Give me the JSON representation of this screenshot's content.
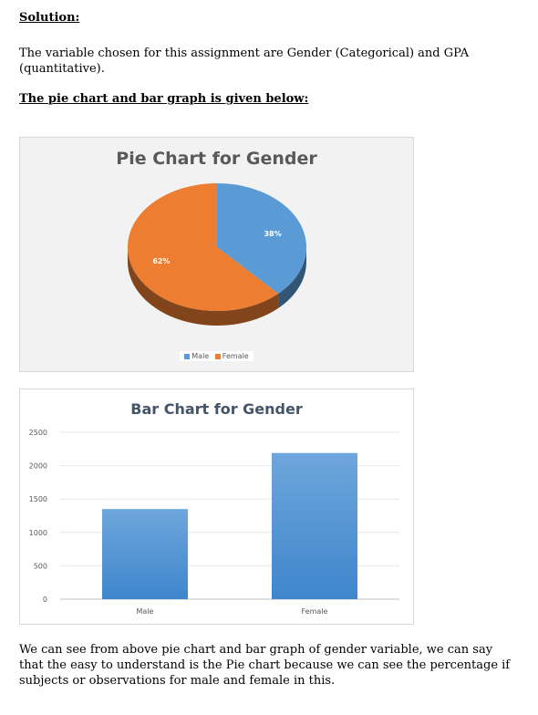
{
  "heading_solution": "Solution:",
  "intro": "The variable chosen for this assignment are Gender (Categorical) and GPA (quantitative).",
  "heading_charts": "The pie chart and bar graph is given below:",
  "colors": {
    "male": "#5b9bd5",
    "female": "#ed7d31"
  },
  "chart_data": [
    {
      "type": "pie",
      "title": "Pie Chart for Gender",
      "categories": [
        "Male",
        "Female"
      ],
      "values": [
        38,
        62
      ],
      "data_labels": [
        "38%",
        "62%"
      ],
      "legend": [
        "Male",
        "Female"
      ],
      "legend_position": "bottom"
    },
    {
      "type": "bar",
      "title": "Bar Chart for Gender",
      "categories": [
        "Male",
        "Female"
      ],
      "values": [
        1350,
        2190
      ],
      "ylim": [
        0,
        2500
      ],
      "yticks": [
        "0",
        "500",
        "1000",
        "1500",
        "2000",
        "2500"
      ],
      "grid": true
    }
  ],
  "conclusion": "We can see from above pie chart and bar graph of gender variable, we can say that the easy to understand is the Pie chart because we can see the percentage if subjects or observations for male and female in this."
}
